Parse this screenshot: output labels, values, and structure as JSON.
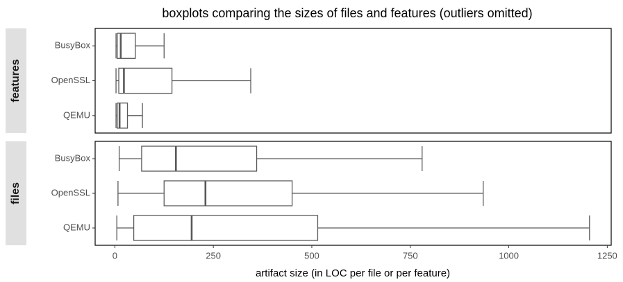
{
  "chart_data": {
    "type": "boxplot",
    "title": "boxplots comparing the sizes of files and features (outliers omitted)",
    "xlabel": "artifact size (in LOC per file or per feature)",
    "xlim": [
      -50,
      1260
    ],
    "xticks": [
      0,
      250,
      500,
      750,
      1000,
      1250
    ],
    "color": "#595959",
    "facets": [
      {
        "label": "features",
        "categories": [
          "BusyBox",
          "OpenSSL",
          "QEMU"
        ],
        "boxes": [
          {
            "low": 3,
            "q1": 6,
            "median": 15,
            "q3": 52,
            "high": 125
          },
          {
            "low": 3,
            "q1": 10,
            "median": 23,
            "q3": 145,
            "high": 345
          },
          {
            "low": 3,
            "q1": 6,
            "median": 12,
            "q3": 32,
            "high": 70
          }
        ]
      },
      {
        "label": "files",
        "categories": [
          "BusyBox",
          "OpenSSL",
          "QEMU"
        ],
        "boxes": [
          {
            "low": 11,
            "q1": 68,
            "median": 155,
            "q3": 360,
            "high": 780
          },
          {
            "low": 8,
            "q1": 125,
            "median": 230,
            "q3": 450,
            "high": 935
          },
          {
            "low": 5,
            "q1": 48,
            "median": 195,
            "q3": 515,
            "high": 1205
          }
        ]
      }
    ]
  }
}
